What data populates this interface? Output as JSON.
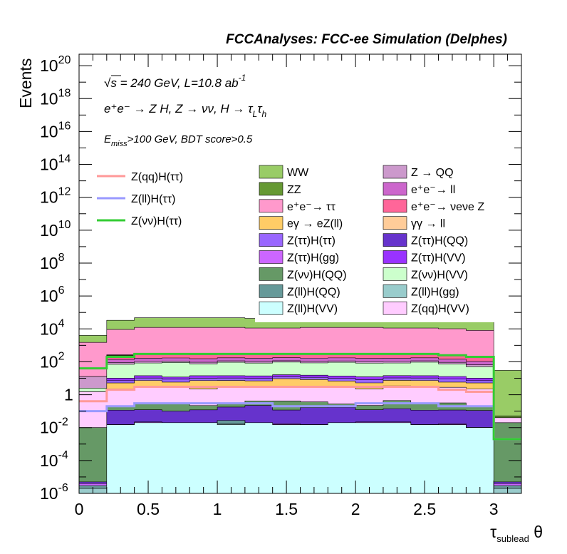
{
  "chart_data": {
    "type": "area",
    "title": "FCCAnalyses: FCC-ee Simulation (Delphes)",
    "xlabel": "τ_sublead θ",
    "ylabel": "Events",
    "xlim": [
      0,
      3.2
    ],
    "ylim": [
      1e-06,
      5e+20
    ],
    "log_y": true,
    "grid": false,
    "legend_placement": "top-center",
    "x_tick_labels": [
      "0",
      "0.5",
      "1",
      "1.5",
      "2",
      "2.5",
      "3"
    ],
    "x_tick_values": [
      0,
      0.5,
      1,
      1.5,
      2,
      2.5,
      3
    ],
    "y_tick_labels": [
      {
        "base": "10",
        "exp": "-6",
        "value": 1e-06
      },
      {
        "base": "10",
        "exp": "-4",
        "value": 0.0001
      },
      {
        "base": "10",
        "exp": "-2",
        "value": 0.01
      },
      {
        "base": "1",
        "exp": "",
        "value": 1
      },
      {
        "base": "10",
        "exp": "2",
        "value": 100.0
      },
      {
        "base": "10",
        "exp": "4",
        "value": 10000.0
      },
      {
        "base": "10",
        "exp": "6",
        "value": 1000000.0
      },
      {
        "base": "10",
        "exp": "8",
        "value": 100000000.0
      },
      {
        "base": "10",
        "exp": "10",
        "value": 10000000000.0
      },
      {
        "base": "10",
        "exp": "12",
        "value": 1000000000000.0
      },
      {
        "base": "10",
        "exp": "14",
        "value": 100000000000000.0
      },
      {
        "base": "10",
        "exp": "16",
        "value": 1e+16
      },
      {
        "base": "10",
        "exp": "18",
        "value": 1e+18
      },
      {
        "base": "10",
        "exp": "20",
        "value": 1e+20
      }
    ],
    "annotations": {
      "line1": {
        "sqrt": "√",
        "s": "s",
        "rest": " = 240 GeV, L=10.8 ab",
        "sup": "-1"
      },
      "line2": {
        "text": "e⁺e⁻ → Z H, Z → νν, H → τ",
        "sub1": "L",
        "tau": "τ",
        "sub2": "h"
      },
      "line3": {
        "E": "E",
        "sub": "miss",
        "rest": ">100 GeV, BDT score>0.5"
      }
    },
    "bin_edges": [
      0,
      0.2,
      0.4,
      0.6,
      0.8,
      1.0,
      1.2,
      1.4,
      1.6,
      1.8,
      2.0,
      2.2,
      2.4,
      2.6,
      2.8,
      3.0,
      3.2
    ],
    "stack": [
      {
        "name": "Z(ll)H(VV)",
        "color": "#ccffff",
        "values": [
          1e-06,
          0.015,
          0.02,
          0.02,
          0.02,
          0.015,
          0.02,
          0.015,
          0.015,
          0.02,
          0.02,
          0.02,
          0.015,
          0.015,
          0.01,
          1e-06
        ]
      },
      {
        "name": "Z(ll)H(gg)",
        "color": "#99cccc",
        "values": [
          1e-06,
          1e-06,
          1e-06,
          1e-06,
          1e-06,
          0.002,
          1e-06,
          1e-06,
          1e-06,
          1e-06,
          1e-06,
          1e-06,
          1e-06,
          1e-06,
          1e-06,
          1e-06
        ]
      },
      {
        "name": "Z(ll)H(QQ)",
        "color": "#669999",
        "values": [
          1e-06,
          1e-06,
          1e-06,
          1e-06,
          1e-06,
          0.01,
          5e-05,
          1e-06,
          1e-06,
          1e-06,
          1e-06,
          1e-06,
          1e-06,
          1e-06,
          1e-06,
          1e-06
        ]
      },
      {
        "name": "Z(ττ)H(gg)",
        "color": "#cc66ff",
        "values": [
          1e-06,
          1e-06,
          0.002,
          1e-06,
          1e-06,
          1e-06,
          1e-06,
          0.002,
          1e-06,
          1e-06,
          0.002,
          0.002,
          1e-06,
          0.002,
          1e-06,
          1e-06
        ]
      },
      {
        "name": "Z(ττ)H(QQ)",
        "color": "#6633cc",
        "values": [
          1e-06,
          0.1,
          0.1,
          0.08,
          0.1,
          0.15,
          0.2,
          0.1,
          0.15,
          0.15,
          0.1,
          0.12,
          0.1,
          0.1,
          0.1,
          1e-06
        ]
      },
      {
        "name": "Z(νν)H(QQ)",
        "color": "#669966",
        "values": [
          0.01,
          0.1,
          0.2,
          0.2,
          0.1,
          0.1,
          0.2,
          0.3,
          0.2,
          0.1,
          0.1,
          0.3,
          0.2,
          0.2,
          0.1,
          0.02
        ]
      },
      {
        "name": "Z(qq)H(VV)",
        "color": "#ffccff",
        "values": [
          1.5,
          2,
          3,
          2.5,
          2,
          3,
          2.5,
          3,
          3,
          2.5,
          2,
          3,
          3,
          2.5,
          2,
          0.02
        ]
      },
      {
        "name": "eγ → eZ(ll)",
        "color": "#ffcc66",
        "values": [
          1e-06,
          3,
          4,
          3,
          5,
          4,
          4,
          6,
          5,
          4,
          3,
          4,
          4,
          3,
          3,
          1e-06
        ]
      },
      {
        "name": "Z(ττ)H(ττ)",
        "color": "#9966ff",
        "values": [
          1e-06,
          2,
          3,
          3,
          3,
          3,
          3,
          3,
          3,
          3,
          3,
          3,
          3,
          3,
          2,
          1e-06
        ]
      },
      {
        "name": "Z(ττ)H(VV)",
        "color": "#9933ff",
        "values": [
          1e-06,
          3,
          4,
          3,
          4,
          4,
          4,
          4,
          4,
          4,
          4,
          4,
          4,
          4,
          3,
          1e-06
        ]
      },
      {
        "name": "Z(νν)H(VV)",
        "color": "#ccffcc",
        "values": [
          1,
          60,
          70,
          80,
          60,
          80,
          70,
          80,
          70,
          80,
          70,
          70,
          80,
          60,
          40,
          1e-06
        ]
      },
      {
        "name": "Z → QQ",
        "color": "#cc99cc",
        "values": [
          10,
          20,
          20,
          20,
          20,
          20,
          20,
          20,
          20,
          20,
          20,
          20,
          20,
          20,
          15,
          1e-06
        ]
      },
      {
        "name": "e⁺e⁻→ ll",
        "color": "#cc66cc",
        "values": [
          1e-06,
          50,
          60,
          60,
          60,
          60,
          60,
          60,
          60,
          60,
          60,
          60,
          60,
          50,
          40,
          1e-06
        ]
      },
      {
        "name": "e⁺e⁻→ νeνe Z",
        "color": "#ff6699",
        "values": [
          1e-06,
          100,
          120,
          120,
          120,
          120,
          120,
          120,
          120,
          120,
          120,
          120,
          120,
          100,
          80,
          1e-06
        ]
      },
      {
        "name": "ZZ",
        "color": "#669933",
        "values": [
          0.02,
          20,
          25,
          25,
          25,
          25,
          25,
          25,
          25,
          25,
          25,
          25,
          25,
          20,
          15,
          0.01
        ]
      },
      {
        "name": "γγ → ll",
        "color": "#ffcc99",
        "values": [
          1e-06,
          5,
          6,
          6,
          6,
          6,
          6,
          6,
          6,
          6,
          6,
          6,
          6,
          5,
          4,
          1e-06
        ]
      },
      {
        "name": "e⁺e⁻→ ττ",
        "color": "#ff99cc",
        "values": [
          1500,
          9000,
          12000,
          12000,
          12000,
          12000,
          11000,
          11000,
          12000,
          12000,
          12000,
          11000,
          11000,
          10000,
          8000,
          1e-06
        ]
      },
      {
        "name": "WW",
        "color": "#99cc66",
        "values": [
          2500,
          24000,
          35000,
          35000,
          35000,
          35000,
          32000,
          30000,
          35000,
          35000,
          35000,
          32000,
          30000,
          25000,
          20000,
          30
        ]
      }
    ],
    "signal_lines": [
      {
        "name": "Z(qq)H(ττ)",
        "color": "#ff9999",
        "values": [
          0.4,
          2,
          3,
          3,
          3,
          3,
          3,
          3,
          3,
          3,
          3,
          3,
          3,
          2,
          1.5,
          0.002
        ]
      },
      {
        "name": "Z(ll)H(ττ)",
        "color": "#9999ff",
        "values": [
          0.1,
          0.2,
          0.3,
          0.3,
          0.3,
          0.3,
          0.3,
          0.2,
          0.2,
          0.2,
          0.3,
          0.3,
          0.3,
          0.2,
          0.2,
          0.002
        ]
      },
      {
        "name": "Z(νν)H(ττ)",
        "color": "#33cc33",
        "values": [
          40,
          200,
          300,
          300,
          300,
          300,
          300,
          300,
          300,
          300,
          300,
          300,
          300,
          250,
          200,
          0.002
        ]
      }
    ],
    "legend_left": [
      {
        "label": "Z(qq)H(ττ)",
        "color": "#ff9999"
      },
      {
        "label": "Z(ll)H(ττ)",
        "color": "#9999ff"
      },
      {
        "label": "Z(νν)H(ττ)",
        "color": "#33cc33"
      }
    ],
    "legend_fill": [
      {
        "label": "WW",
        "color": "#99cc66"
      },
      {
        "label": "Z → QQ",
        "color": "#cc99cc"
      },
      {
        "label": "ZZ",
        "color": "#669933"
      },
      {
        "label": "e⁺e⁻→ ll",
        "color": "#cc66cc"
      },
      {
        "label": "e⁺e⁻→ ττ",
        "color": "#ff99cc"
      },
      {
        "label": "e⁺e⁻→ νeνe Z",
        "color": "#ff6699"
      },
      {
        "label": "eγ → eZ(ll)",
        "color": "#ffcc66"
      },
      {
        "label": "γγ → ll",
        "color": "#ffcc99"
      },
      {
        "label": "Z(ττ)H(ττ)",
        "color": "#9966ff"
      },
      {
        "label": "Z(ττ)H(QQ)",
        "color": "#6633cc"
      },
      {
        "label": "Z(ττ)H(gg)",
        "color": "#cc66ff"
      },
      {
        "label": "Z(ττ)H(VV)",
        "color": "#9933ff"
      },
      {
        "label": "Z(νν)H(QQ)",
        "color": "#669966"
      },
      {
        "label": "Z(νν)H(VV)",
        "color": "#ccffcc"
      },
      {
        "label": "Z(ll)H(QQ)",
        "color": "#669999"
      },
      {
        "label": "Z(ll)H(gg)",
        "color": "#99cccc"
      },
      {
        "label": "Z(ll)H(VV)",
        "color": "#ccffff"
      },
      {
        "label": "Z(qq)H(VV)",
        "color": "#ffccff"
      }
    ]
  }
}
